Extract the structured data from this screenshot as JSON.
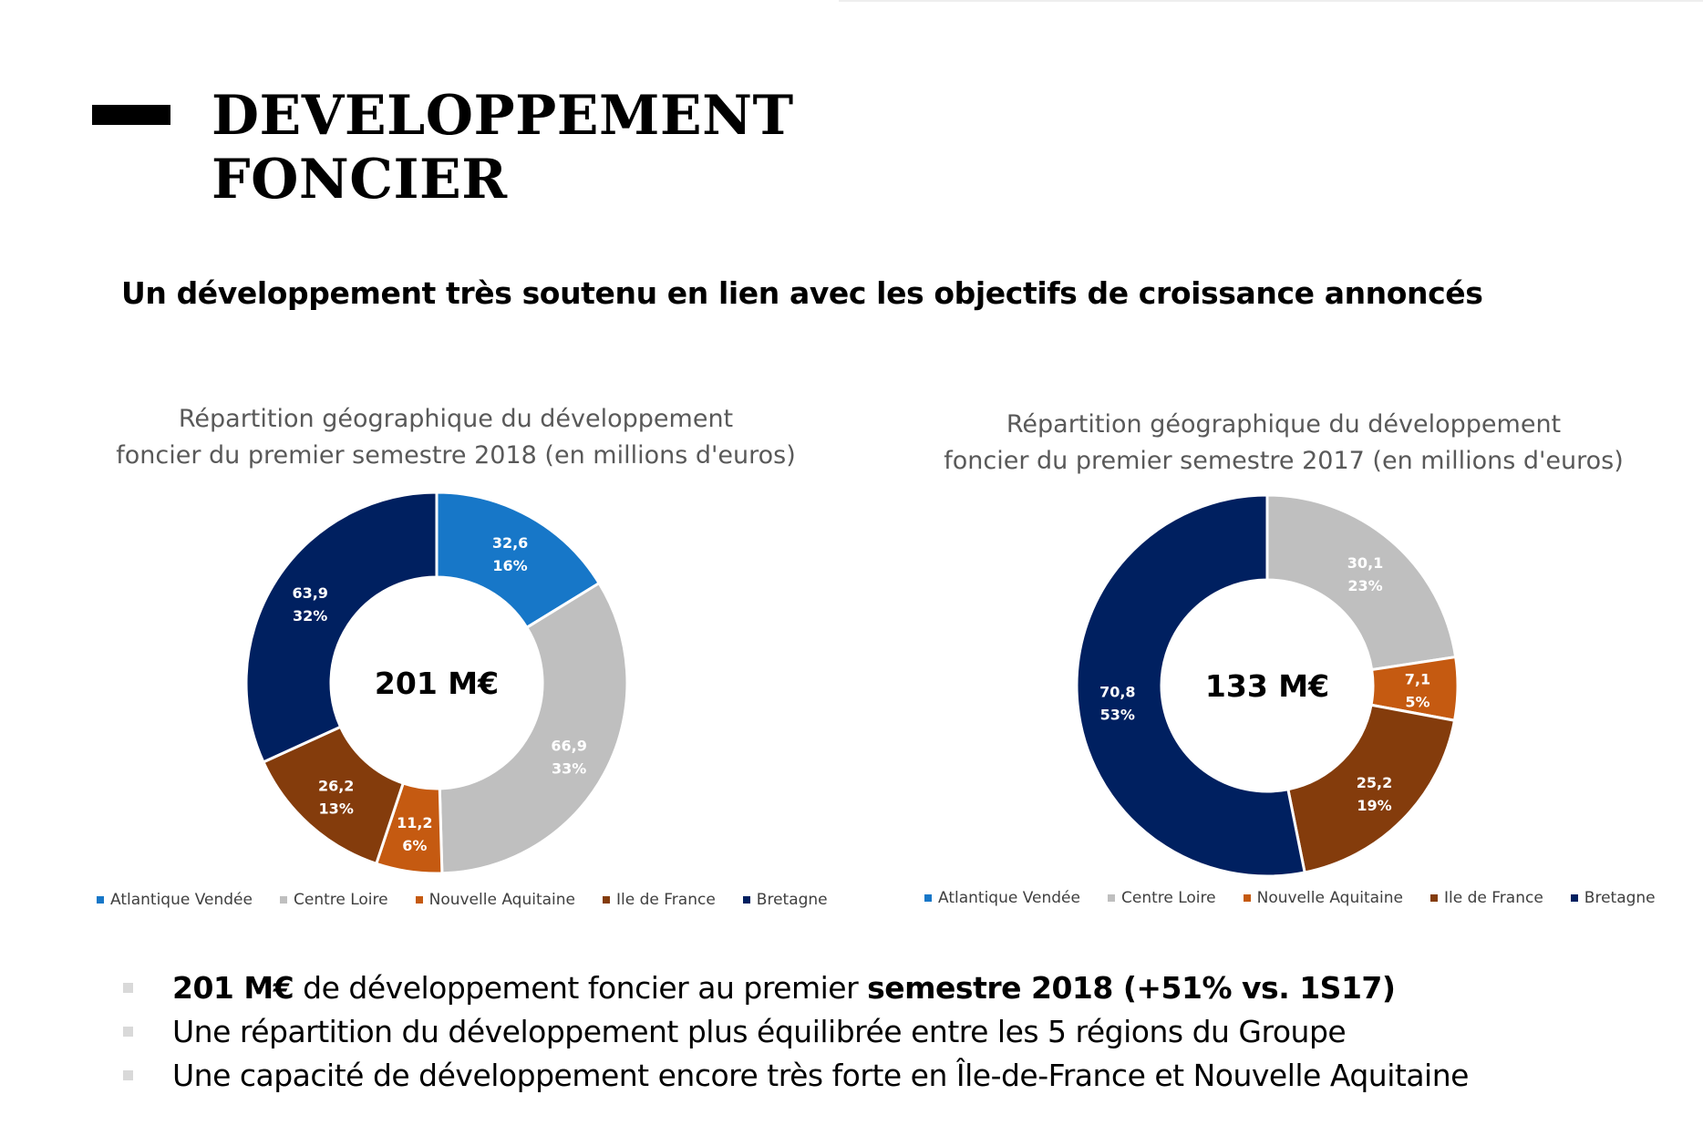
{
  "header": {
    "title_line1": "DEVELOPPEMENT",
    "title_line2": "FONCIER",
    "subtitle": "Un développement très soutenu en lien avec les objectifs de croissance annoncés"
  },
  "colors": {
    "Atlantique Vendée": "#1777c8",
    "Centre Loire": "#bfbfbf",
    "Nouvelle Aquitaine": "#c55a11",
    "Ile de France": "#843c0c",
    "Bretagne": "#002060"
  },
  "chart_data": [
    {
      "type": "pie",
      "title_line1": "Répartition géographique du développement",
      "title_line2": "foncier du premier semestre 2018 (en millions d'euros)",
      "center_label": "201 M€",
      "legend_position": "bottom",
      "categories": [
        "Atlantique Vendée",
        "Centre Loire",
        "Nouvelle Aquitaine",
        "Ile de France",
        "Bretagne"
      ],
      "values": [
        32.6,
        66.9,
        11.2,
        26.2,
        63.9
      ],
      "value_labels": [
        "32,6",
        "66,9",
        "11,2",
        "26,2",
        "63,9"
      ],
      "percent_labels": [
        "16%",
        "33%",
        "6%",
        "13%",
        "32%"
      ]
    },
    {
      "type": "pie",
      "title_line1": "Répartition géographique du développement",
      "title_line2": "foncier du premier semestre 2017 (en millions d'euros)",
      "center_label": "133 M€",
      "legend_position": "bottom",
      "categories": [
        "Atlantique Vendée",
        "Centre Loire",
        "Nouvelle Aquitaine",
        "Ile de France",
        "Bretagne"
      ],
      "values": [
        0,
        30.1,
        7.1,
        25.2,
        70.8
      ],
      "value_labels": [
        "",
        "30,1",
        "7,1",
        "25,2",
        "70,8"
      ],
      "percent_labels": [
        "",
        "23%",
        "5%",
        "19%",
        "53%"
      ]
    }
  ],
  "bullets": [
    {
      "parts": [
        {
          "text": "201 M€",
          "bold": true
        },
        {
          "text": " de développement foncier au premier ",
          "bold": false
        },
        {
          "text": "semestre 2018 (+51% vs. 1S17)",
          "bold": true
        }
      ]
    },
    {
      "parts": [
        {
          "text": "Une répartition du développement plus équilibrée entre les 5 régions du Groupe",
          "bold": false
        }
      ]
    },
    {
      "parts": [
        {
          "text": "Une capacité de développement encore très forte en Île-de-France et Nouvelle Aquitaine",
          "bold": false
        }
      ]
    }
  ]
}
